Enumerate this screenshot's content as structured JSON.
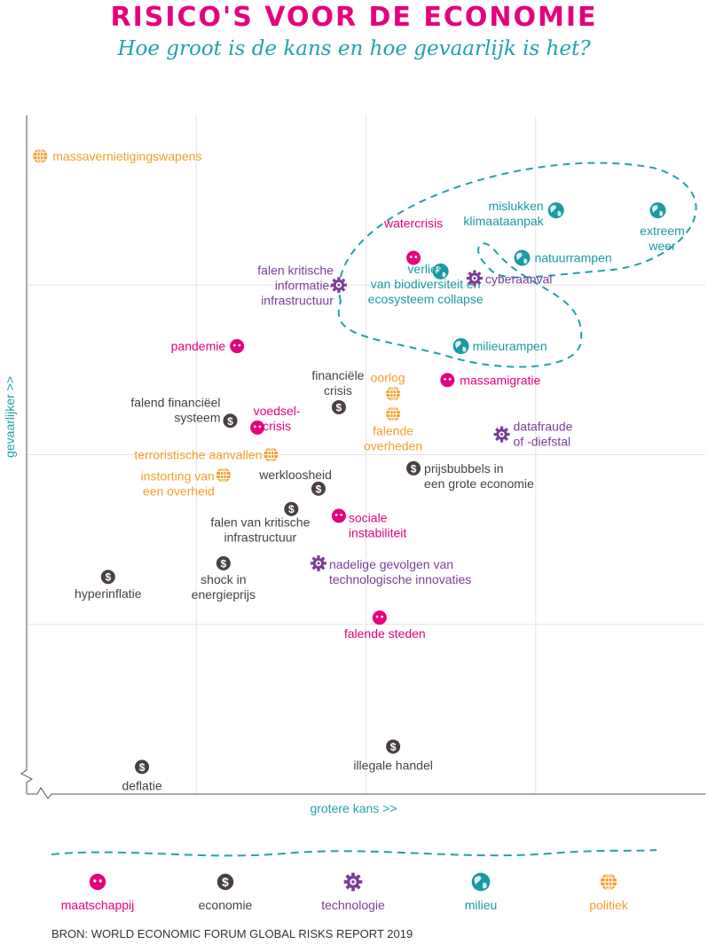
{
  "title": "RISICO'S VOOR DE ECONOMIE",
  "subtitle": "Hoe groot is de kans en hoe gevaarlijk is het?",
  "source": "BRON: WORLD ECONOMIC FORUM GLOBAL RISKS REPORT 2019",
  "colors": {
    "maatschappij": "#e6007e",
    "economie": "#4a4042",
    "technologie": "#7b3e96",
    "milieu": "#1b9aa5",
    "politiek": "#f1a02c",
    "axis": "#1fa2ad"
  },
  "legend": [
    {
      "key": "maatschappij",
      "label": "maatschappij",
      "icon": "face-icon"
    },
    {
      "key": "economie",
      "label": "economie",
      "icon": "dollar-coin-icon"
    },
    {
      "key": "technologie",
      "label": "technologie",
      "icon": "gear-icon"
    },
    {
      "key": "milieu",
      "label": "milieu",
      "icon": "globe-icon"
    },
    {
      "key": "politiek",
      "label": "politiek",
      "icon": "grid-globe-icon"
    }
  ],
  "chart_data": {
    "type": "scatter",
    "title": "RISICO'S VOOR DE ECONOMIE",
    "subtitle": "Hoe groot is de kans en hoe gevaarlijk is het?",
    "xlabel": "grotere kans >>",
    "ylabel": "gevaarlijker >>",
    "xlim": [
      0,
      100
    ],
    "ylim": [
      0,
      100
    ],
    "grid": true,
    "highlight": "milieu-risico's omcirkeld met stippellijn",
    "points": [
      {
        "label": [
          "massavernietigingswapens"
        ],
        "category": "politiek",
        "x": 2,
        "y": 94
      },
      {
        "label": [
          "mislukken",
          "klimaataanpak"
        ],
        "category": "milieu",
        "x": 78,
        "y": 86
      },
      {
        "label": [
          "extreem",
          "weer"
        ],
        "category": "milieu",
        "x": 93,
        "y": 86
      },
      {
        "label": [
          "watercrisis"
        ],
        "category": "maatschappij",
        "x": 57,
        "y": 79
      },
      {
        "label": [
          "natuurrampen"
        ],
        "category": "milieu",
        "x": 73,
        "y": 79
      },
      {
        "label": [
          "verlies",
          "van biodiversiteit en",
          "ecosysteem collapse"
        ],
        "category": "milieu",
        "x": 61,
        "y": 77
      },
      {
        "label": [
          "falen kritische",
          "informatie-",
          "infrastructuur"
        ],
        "category": "technologie",
        "x": 46,
        "y": 75
      },
      {
        "label": [
          "cyberaanval"
        ],
        "category": "technologie",
        "x": 66,
        "y": 76
      },
      {
        "label": [
          "pandemie"
        ],
        "category": "maatschappij",
        "x": 31,
        "y": 66
      },
      {
        "label": [
          "milieurampen"
        ],
        "category": "milieu",
        "x": 64,
        "y": 66
      },
      {
        "label": [
          "financiële",
          "crisis"
        ],
        "category": "economie",
        "x": 46,
        "y": 57
      },
      {
        "label": [
          "oorlog"
        ],
        "category": "politiek",
        "x": 54,
        "y": 59
      },
      {
        "label": [
          "massamigratie"
        ],
        "category": "maatschappij",
        "x": 62,
        "y": 61
      },
      {
        "label": [
          "falend financiëel",
          "systeem"
        ],
        "category": "economie",
        "x": 30,
        "y": 55
      },
      {
        "label": [
          "voedsel-",
          "crisis"
        ],
        "category": "maatschappij",
        "x": 34,
        "y": 54
      },
      {
        "label": [
          "falende",
          "overheden"
        ],
        "category": "politiek",
        "x": 54,
        "y": 56
      },
      {
        "label": [
          "datafraude",
          "of -diefstal"
        ],
        "category": "technologie",
        "x": 70,
        "y": 53
      },
      {
        "label": [
          "terroristische aanvallen"
        ],
        "category": "politiek",
        "x": 36,
        "y": 50
      },
      {
        "label": [
          "instorting van",
          "een overheid"
        ],
        "category": "politiek",
        "x": 29,
        "y": 47
      },
      {
        "label": [
          "werkloosheid"
        ],
        "category": "economie",
        "x": 43,
        "y": 45
      },
      {
        "label": [
          "prijsbubbels in",
          "een grote economie"
        ],
        "category": "economie",
        "x": 57,
        "y": 48
      },
      {
        "label": [
          "falen van kritische",
          "infrastructuur"
        ],
        "category": "economie",
        "x": 39,
        "y": 42
      },
      {
        "label": [
          "sociale",
          "instabiliteit"
        ],
        "category": "maatschappij",
        "x": 46,
        "y": 41
      },
      {
        "label": [
          "shock in",
          "energieprijs"
        ],
        "category": "economie",
        "x": 29,
        "y": 34
      },
      {
        "label": [
          "nadelige gevolgen van",
          "technologische innovaties"
        ],
        "category": "technologie",
        "x": 43,
        "y": 34
      },
      {
        "label": [
          "hyperinflatie"
        ],
        "category": "economie",
        "x": 12,
        "y": 32
      },
      {
        "label": [
          "falende steden"
        ],
        "category": "maatschappij",
        "x": 52,
        "y": 26
      },
      {
        "label": [
          "illegale handel"
        ],
        "category": "economie",
        "x": 54,
        "y": 7
      },
      {
        "label": [
          "deflatie"
        ],
        "category": "economie",
        "x": 17,
        "y": 4
      }
    ]
  }
}
